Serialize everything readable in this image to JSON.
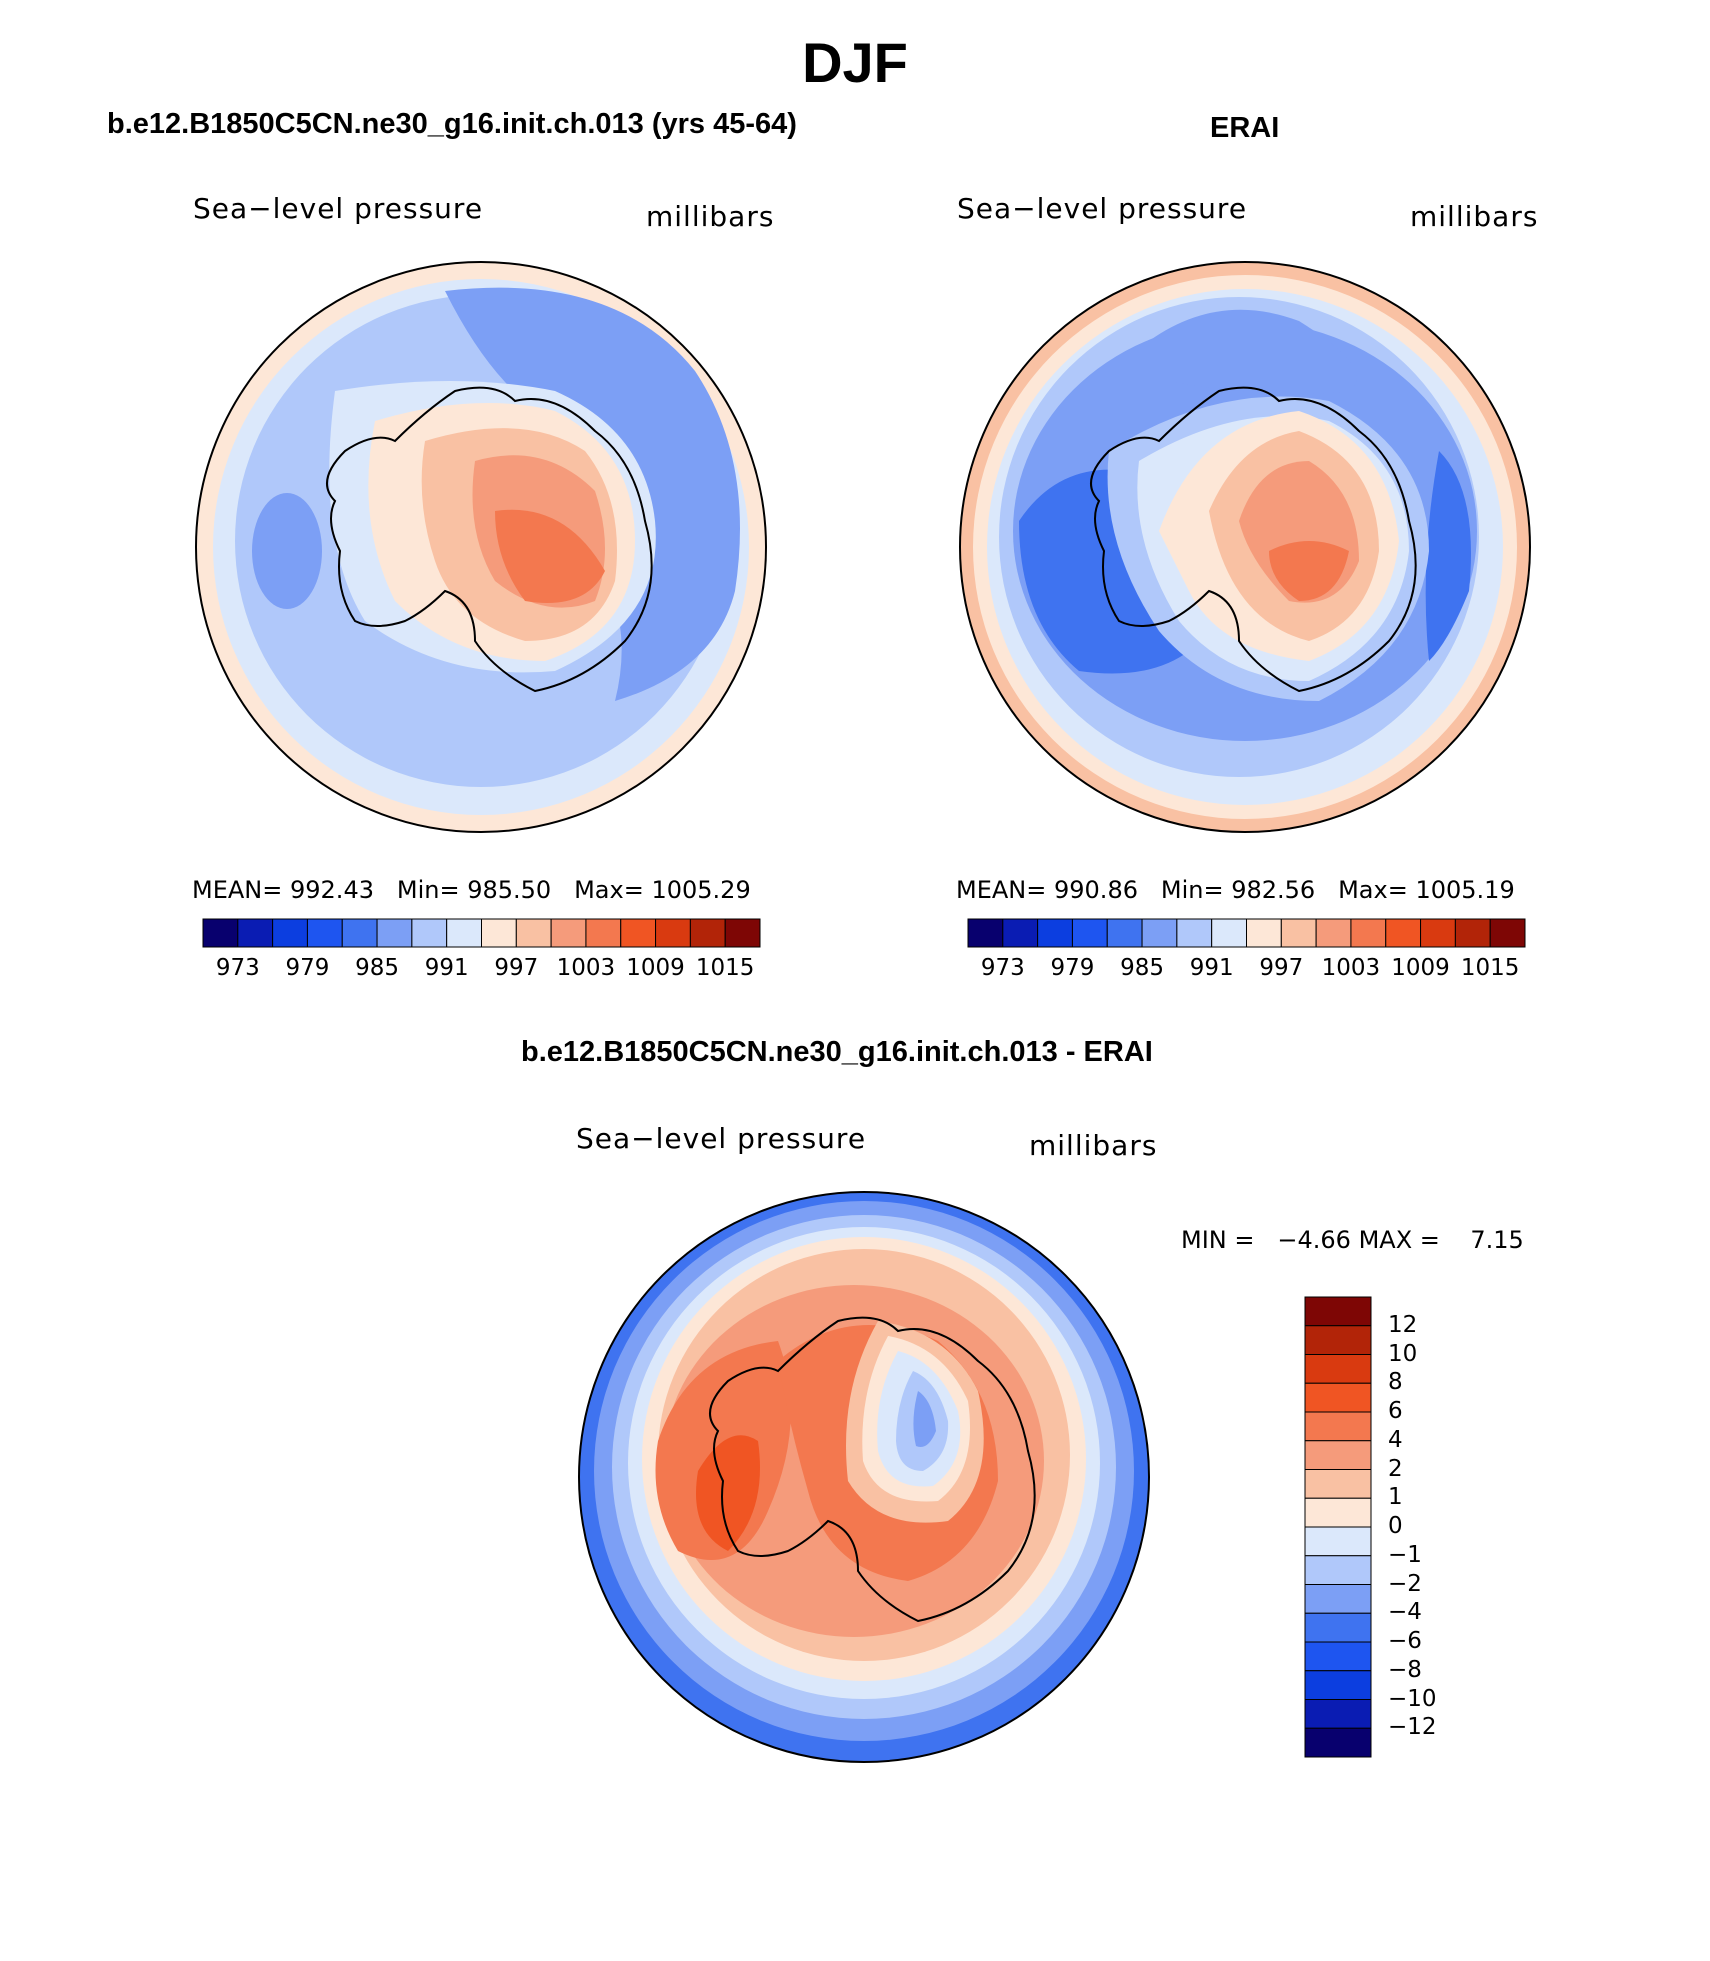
{
  "figure": {
    "season": "DJF",
    "colors": {
      "pressure_scale": [
        "#08006e",
        "#0a1cb3",
        "#0c3ee0",
        "#1e55f0",
        "#3f73f0",
        "#7c9ff5",
        "#b0c8fa",
        "#dbe8fb",
        "#fde7d7",
        "#f9c1a3",
        "#f59b7b",
        "#f3784f",
        "#f05523",
        "#d93a10",
        "#b22408",
        "#7e0605"
      ],
      "diff_scale": [
        "#08006e",
        "#0a1cb3",
        "#0c3ee0",
        "#1e55f0",
        "#3f73f0",
        "#7c9ff5",
        "#b0c8fa",
        "#dbe8fb",
        "#fde7d7",
        "#f9c1a3",
        "#f59b7b",
        "#f3784f",
        "#f05523",
        "#d93a10",
        "#b22408",
        "#7e0605"
      ],
      "coastline": "#000000"
    }
  },
  "panels": [
    {
      "title": "b.e12.B1850C5CN.ne30_g16.init.ch.013 (yrs 45-64)",
      "left_label": "Sea−level pressure",
      "right_label": "millibars",
      "mean_label": "MEAN=",
      "mean": "992.43",
      "min_label": "Min=",
      "min": "985.50",
      "max_label": "Max=",
      "max": "1005.29",
      "colorbar_ticks": [
        "973",
        "979",
        "985",
        "991",
        "997",
        "1003",
        "1009",
        "1015"
      ]
    },
    {
      "title": "ERAI",
      "left_label": "Sea−level pressure",
      "right_label": "millibars",
      "mean_label": "MEAN=",
      "mean": "990.86",
      "min_label": "Min=",
      "min": "982.56",
      "max_label": "Max=",
      "max": "1005.19",
      "colorbar_ticks": [
        "973",
        "979",
        "985",
        "991",
        "997",
        "1003",
        "1009",
        "1015"
      ]
    }
  ],
  "difference": {
    "title": "b.e12.B1850C5CN.ne30_g16.init.ch.013 - ERAI",
    "left_label": "Sea−level pressure",
    "right_label": "millibars",
    "min_label": "MIN =",
    "min": "−4.66",
    "max_label": "MAX =",
    "max": "7.15",
    "colorbar_ticks": [
      "12",
      "10",
      "8",
      "6",
      "4",
      "2",
      "1",
      "0",
      "−1",
      "−2",
      "−4",
      "−6",
      "−8",
      "−10",
      "−12"
    ]
  }
}
